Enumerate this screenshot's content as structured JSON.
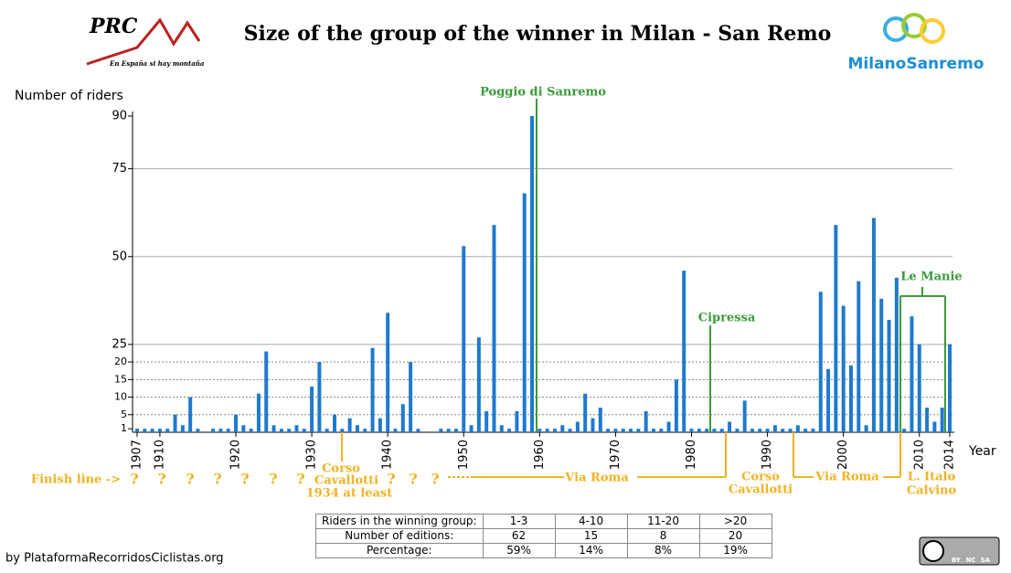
{
  "chart_data": {
    "type": "bar",
    "title": "Size of the group of the winner in Milan - San Remo",
    "y_label": "Number of riders",
    "x_label": "Year",
    "color": "#1f7acc",
    "x": [
      1907,
      1908,
      1909,
      1910,
      1911,
      1912,
      1913,
      1914,
      1915,
      1916,
      1917,
      1918,
      1919,
      1920,
      1921,
      1922,
      1923,
      1924,
      1925,
      1926,
      1927,
      1928,
      1929,
      1930,
      1931,
      1932,
      1933,
      1934,
      1935,
      1936,
      1937,
      1938,
      1939,
      1940,
      1941,
      1942,
      1943,
      1944,
      1945,
      1946,
      1947,
      1948,
      1949,
      1950,
      1951,
      1952,
      1953,
      1954,
      1955,
      1956,
      1957,
      1958,
      1959,
      1960,
      1961,
      1962,
      1963,
      1964,
      1965,
      1966,
      1967,
      1968,
      1969,
      1970,
      1971,
      1972,
      1973,
      1974,
      1975,
      1976,
      1977,
      1978,
      1979,
      1980,
      1981,
      1982,
      1983,
      1984,
      1985,
      1986,
      1987,
      1988,
      1989,
      1990,
      1991,
      1992,
      1993,
      1994,
      1995,
      1996,
      1997,
      1998,
      1999,
      2000,
      2001,
      2002,
      2003,
      2004,
      2005,
      2006,
      2007,
      2008,
      2009,
      2010,
      2011,
      2012,
      2013,
      2014
    ],
    "values": [
      1,
      1,
      1,
      1,
      1,
      5,
      2,
      10,
      1,
      null,
      1,
      1,
      1,
      5,
      2,
      1,
      11,
      23,
      2,
      1,
      1,
      2,
      1,
      13,
      20,
      1,
      5,
      1,
      4,
      2,
      1,
      24,
      4,
      34,
      1,
      8,
      20,
      1,
      null,
      null,
      1,
      1,
      1,
      53,
      2,
      27,
      6,
      59,
      2,
      1,
      6,
      68,
      90,
      1,
      1,
      1,
      2,
      1,
      3,
      11,
      4,
      7,
      1,
      1,
      1,
      1,
      1,
      6,
      1,
      1,
      3,
      15,
      46,
      1,
      1,
      1,
      1,
      1,
      3,
      1,
      9,
      1,
      1,
      1,
      2,
      1,
      1,
      2,
      1,
      1,
      40,
      18,
      59,
      36,
      19,
      43,
      2,
      61,
      38,
      32,
      44,
      1,
      33,
      25,
      7,
      3,
      7,
      25
    ],
    "ylim": [
      0,
      90
    ],
    "yticks": [
      1,
      5,
      10,
      15,
      20,
      25,
      50,
      75,
      90
    ],
    "grid_style": [
      "none",
      "dotted",
      "dotted",
      "dotted",
      "dotted",
      "solid",
      "solid",
      "solid",
      "none"
    ],
    "xlim": [
      1907,
      2014
    ],
    "xticks": [
      1907,
      1910,
      1920,
      1930,
      1940,
      1950,
      1960,
      1970,
      1980,
      1990,
      2000,
      2010,
      2014
    ],
    "climbs": [
      "Poggio di Sanremo",
      "Cipressa",
      "Le Manie"
    ],
    "route_labels": [
      "Finish line ->",
      "?",
      "?",
      "?",
      "?",
      "?",
      "?",
      "?",
      "Corso",
      "Cavallotti",
      "1934 at least",
      "?",
      "?",
      "?",
      "Via Roma",
      "Corso",
      "Cavallotti",
      "Via Roma",
      "L. Italo",
      "Calvino"
    ]
  },
  "table": {
    "rows": [
      [
        "Riders in the winning group:",
        "1-3",
        "4-10",
        "11-20",
        ">20"
      ],
      [
        "Number of editions:",
        "62",
        "15",
        "8",
        "20"
      ],
      [
        "Percentage:",
        "59%",
        "14%",
        "8%",
        "19%"
      ]
    ]
  },
  "logos": {
    "left": "PRC",
    "left_tagline": "En España si hay montaña",
    "right": "MilanoSanremo"
  },
  "credit": "by PlataformaRecorridosCiclistas.org",
  "license": [
    "BY",
    "NC",
    "SA"
  ]
}
